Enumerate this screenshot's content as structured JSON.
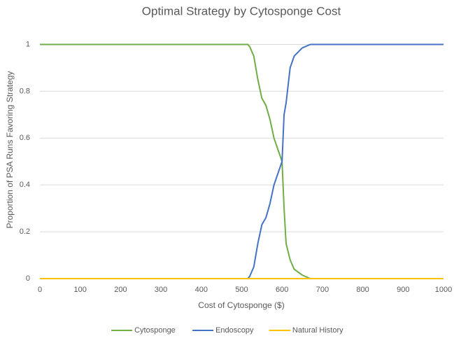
{
  "chart_data": {
    "type": "line",
    "title": "Optimal Strategy by Cytosponge Cost",
    "x_label": "Cost of Cytosponge ($)",
    "y_label": "Proportion of PSA Runs Favoring Strategy",
    "x": [
      0,
      515,
      520,
      530,
      540,
      550,
      560,
      570,
      580,
      590,
      600,
      605,
      610,
      620,
      630,
      650,
      670,
      1000
    ],
    "series": [
      {
        "name": "Cytosponge",
        "color": "#70ad47",
        "values": [
          1,
          1,
          0.99,
          0.95,
          0.85,
          0.77,
          0.74,
          0.68,
          0.6,
          0.55,
          0.5,
          0.3,
          0.15,
          0.08,
          0.04,
          0.015,
          0,
          0
        ]
      },
      {
        "name": "Endoscopy",
        "color": "#4472c4",
        "values": [
          0,
          0,
          0.01,
          0.05,
          0.15,
          0.23,
          0.26,
          0.32,
          0.4,
          0.45,
          0.5,
          0.7,
          0.75,
          0.9,
          0.95,
          0.985,
          1,
          1
        ]
      },
      {
        "name": "Natural History",
        "color": "#ffc000",
        "values": [
          0,
          0,
          0,
          0,
          0,
          0,
          0,
          0,
          0,
          0,
          0,
          0,
          0,
          0,
          0,
          0,
          0,
          0
        ]
      }
    ],
    "xlim": [
      0,
      1000
    ],
    "xticks": [
      0,
      100,
      200,
      300,
      400,
      500,
      600,
      700,
      800,
      900,
      1000
    ],
    "ylim": [
      0,
      1.1
    ],
    "yticks": [
      0,
      0.2,
      0.4,
      0.6,
      0.8,
      1
    ],
    "grid": true,
    "legend": "bottom"
  }
}
